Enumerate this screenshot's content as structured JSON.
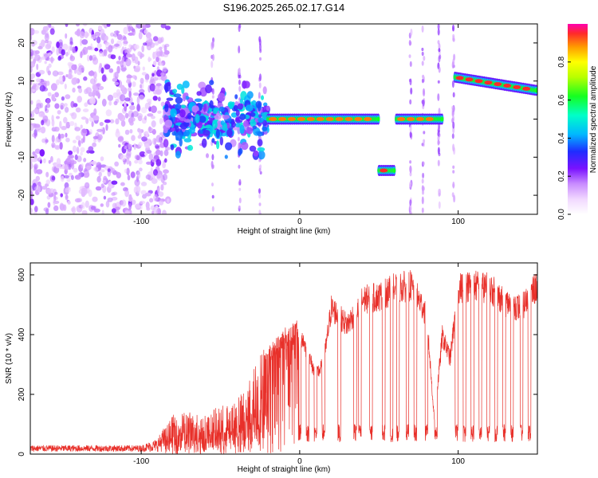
{
  "title": "S196.2025.265.02.17.G14",
  "chart_data": [
    {
      "type": "heatmap",
      "title": "S196.2025.265.02.17.G14",
      "xlabel": "Height of straight line (km)",
      "ylabel": "Frequency (Hz)",
      "xlim": [
        -170,
        150
      ],
      "ylim": [
        -25,
        25
      ],
      "x_ticks": [
        -100,
        0,
        100
      ],
      "y_ticks": [
        -20,
        -10,
        0,
        10,
        20
      ],
      "colorbar": {
        "label": "Normalized spectral amplitude",
        "range": [
          0,
          1
        ],
        "ticks": [
          "0.0",
          "0.2",
          "0.4",
          "0.6",
          "0.8"
        ],
        "tick_values": [
          0.0,
          0.2,
          0.4,
          0.6,
          0.8
        ]
      },
      "segments": [
        {
          "x_start": -170,
          "x_end": -85,
          "frequency": 0,
          "amplitude": 0.05,
          "note": "diffuse noise"
        },
        {
          "x_start": -85,
          "x_end": -20,
          "frequency": 0,
          "amplitude": 0.3,
          "note": "scattered"
        },
        {
          "x_start": -20,
          "x_end": 50,
          "frequency": 0,
          "amplitude": 0.8
        },
        {
          "x_start": 50,
          "x_end": 60,
          "frequency": -13.5,
          "amplitude": 0.85
        },
        {
          "x_start": 61,
          "x_end": 90,
          "frequency": 0,
          "amplitude": 0.8
        },
        {
          "x_start": 98,
          "x_end": 150,
          "frequency_start": 11,
          "frequency_end": 7.5,
          "amplitude": 0.85
        }
      ]
    },
    {
      "type": "line",
      "xlabel": "Height of straight line (km)",
      "ylabel": "SNR (10 * v/v)",
      "xlim": [
        -170,
        150
      ],
      "ylim": [
        0,
        640
      ],
      "x_ticks": [
        -100,
        0,
        100
      ],
      "y_ticks": [
        0,
        200,
        400,
        600
      ],
      "color": "#e8302a",
      "envelope": {
        "x": [
          -170,
          -100,
          -90,
          -80,
          -70,
          -60,
          -50,
          -40,
          -30,
          -20,
          -10,
          0,
          10,
          15,
          20,
          30,
          40,
          50,
          60,
          70,
          80,
          85,
          90,
          95,
          100,
          110,
          120,
          130,
          140,
          150
        ],
        "y": [
          20,
          20,
          40,
          120,
          130,
          120,
          150,
          160,
          260,
          350,
          410,
          440,
          280,
          320,
          520,
          460,
          550,
          560,
          590,
          600,
          500,
          120,
          420,
          340,
          590,
          600,
          590,
          540,
          520,
          600
        ]
      },
      "dropout_x": [
        0,
        5,
        10,
        15,
        25,
        35,
        38,
        45,
        53,
        58,
        62,
        68,
        73,
        80,
        86,
        99,
        104,
        109,
        114,
        119,
        124,
        129,
        134,
        140,
        145
      ]
    }
  ]
}
